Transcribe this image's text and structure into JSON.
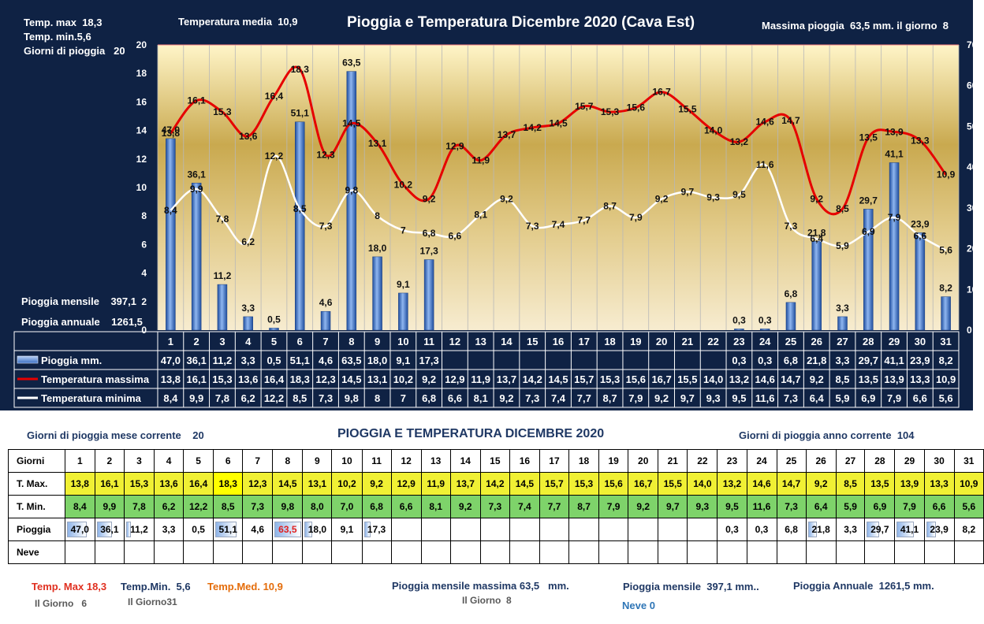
{
  "header": {
    "title": "Pioggia e Temperatura Dicembre 2020 (Cava Est)",
    "tmax_label": "Temp. max",
    "tmax_value": "18,3",
    "tmin_label": "Temp.  min.",
    "tmin_value": "5,6",
    "rain_days_label": "Giorni  di pioggia",
    "rain_days_value": "20",
    "tmed_label": "Temperatura media",
    "tmed_value": "10,9",
    "maxrain_label": "Massima pioggia",
    "maxrain_value": "63,5 mm. il giorno",
    "maxrain_day": "8",
    "monthly_label": "Pioggia mensile",
    "monthly_value": "397,1",
    "annual_label": "Pioggia annuale",
    "annual_value": "1261,5"
  },
  "chart_data": {
    "type": "bar",
    "categories": [
      "1",
      "2",
      "3",
      "4",
      "5",
      "6",
      "7",
      "8",
      "9",
      "10",
      "11",
      "12",
      "13",
      "14",
      "15",
      "16",
      "17",
      "18",
      "19",
      "20",
      "21",
      "22",
      "23",
      "24",
      "25",
      "26",
      "27",
      "28",
      "29",
      "30",
      "31"
    ],
    "y_left": {
      "min": 0,
      "max": 20,
      "ticks": [
        "0",
        "2",
        "4",
        "6",
        "8",
        "10",
        "12",
        "14",
        "16",
        "18",
        "20"
      ]
    },
    "y_right": {
      "min": 0,
      "max": 70,
      "ticks": [
        "0",
        "10",
        "20",
        "30",
        "40",
        "50",
        "60",
        "70"
      ]
    },
    "series": [
      {
        "name": "Pioggia mm.",
        "type": "bar",
        "axis": "right",
        "color": "#4a7fd6",
        "values": [
          47.0,
          36.1,
          11.2,
          3.3,
          0.5,
          51.1,
          4.6,
          63.5,
          18.0,
          9.1,
          17.3,
          null,
          null,
          null,
          null,
          null,
          null,
          null,
          null,
          null,
          null,
          null,
          0.3,
          0.3,
          6.8,
          21.8,
          3.3,
          29.7,
          41.1,
          23.9,
          8.2
        ],
        "labels": [
          "47,0",
          "36,1",
          "11,2",
          "3,3",
          "0,5",
          "51,1",
          "4,6",
          "63,5",
          "18,0",
          "9,1",
          "17,3",
          "",
          "",
          "",
          "",
          "",
          "",
          "",
          "",
          "",
          "",
          "",
          "0,3",
          "0,3",
          "6,8",
          "21,8",
          "3,3",
          "29,7",
          "41,1",
          "23,9",
          "8,2"
        ]
      },
      {
        "name": "Temperatura massima",
        "type": "line",
        "axis": "left",
        "color": "#e60000",
        "values": [
          13.8,
          16.1,
          15.3,
          13.6,
          16.4,
          18.3,
          12.3,
          14.5,
          13.1,
          10.2,
          9.2,
          12.9,
          11.9,
          13.7,
          14.2,
          14.5,
          15.7,
          15.3,
          15.6,
          16.7,
          15.5,
          14.0,
          13.2,
          14.6,
          14.7,
          9.2,
          8.5,
          13.5,
          13.9,
          13.3,
          10.9
        ],
        "labels": [
          "13,8",
          "16,1",
          "15,3",
          "13,6",
          "16,4",
          "18,3",
          "12,3",
          "14,5",
          "13,1",
          "10,2",
          "9,2",
          "12,9",
          "11,9",
          "13,7",
          "14,2",
          "14,5",
          "15,7",
          "15,3",
          "15,6",
          "16,7",
          "15,5",
          "14,0",
          "13,2",
          "14,6",
          "14,7",
          "9,2",
          "8,5",
          "13,5",
          "13,9",
          "13,3",
          "10,9"
        ]
      },
      {
        "name": "Temperatura minima",
        "type": "line",
        "axis": "left",
        "color": "#ffffff",
        "values": [
          8.4,
          9.9,
          7.8,
          6.2,
          12.2,
          8.5,
          7.3,
          9.8,
          8,
          7,
          6.8,
          6.6,
          8.1,
          9.2,
          7.3,
          7.4,
          7.7,
          8.7,
          7.9,
          9.2,
          9.7,
          9.3,
          9.5,
          11.6,
          7.3,
          6.4,
          5.9,
          6.9,
          7.9,
          6.6,
          5.6
        ],
        "labels": [
          "8,4",
          "9,9",
          "7,8",
          "6,2",
          "12,2",
          "8,5",
          "7,3",
          "9,8",
          "8",
          "7",
          "6,8",
          "6,6",
          "8,1",
          "9,2",
          "7,3",
          "7,4",
          "7,7",
          "8,7",
          "7,9",
          "9,2",
          "9,7",
          "9,3",
          "9,5",
          "11,6",
          "7,3",
          "6,4",
          "5,9",
          "6,9",
          "7,9",
          "6,6",
          "5,6"
        ]
      }
    ]
  },
  "lower": {
    "title": "PIOGGIA E TEMPERATURA DICEMBRE 2020",
    "rain_days_month_label": "Giorni di pioggia mese corrente",
    "rain_days_month_value": "20",
    "rain_days_year_label": "Giorni di pioggia anno corrente",
    "rain_days_year_value": "104",
    "row_labels": [
      "Giorni",
      "T. Max.",
      "T. Min.",
      "Pioggia",
      "Neve"
    ],
    "tmin_table": [
      "8,4",
      "9,9",
      "7,8",
      "6,2",
      "12,2",
      "8,5",
      "7,3",
      "9,8",
      "8,0",
      "7,0",
      "6,8",
      "6,6",
      "8,1",
      "9,2",
      "7,3",
      "7,4",
      "7,7",
      "8,7",
      "7,9",
      "9,2",
      "9,7",
      "9,3",
      "9,5",
      "11,6",
      "7,3",
      "6,4",
      "5,9",
      "6,9",
      "7,9",
      "6,6",
      "5,6"
    ],
    "rain_table": [
      "47,0",
      "36,1",
      "11,2",
      "3,3",
      "0,5",
      "51,1",
      "4,6",
      "63,5",
      "18,0",
      "9,1",
      "17,3",
      "",
      "",
      "",
      "",
      "",
      "",
      "",
      "",
      "",
      "",
      "",
      "0,3",
      "0,3",
      "6,8",
      "21,8",
      "3,3",
      "29,7",
      "41,1",
      "23,9",
      "8,2"
    ],
    "highlight_max_rain_day": 8,
    "highlight_tmax_day": 6
  },
  "footer": {
    "tmax_label": "Temp. Max",
    "tmax_value": "18,3",
    "tmax_day_label": "Il Giorno",
    "tmax_day": "6",
    "tmin_label": "Temp.Min.",
    "tmin_value": "5,6",
    "tmin_day_label": "Il Giorno",
    "tmin_day": "31",
    "tmed_label": "Temp.Med.",
    "tmed_value": "10,9",
    "monthly_max_label": "Pioggia mensile massima",
    "monthly_max_value": "63,5",
    "monthly_max_unit": "mm.",
    "monthly_max_day_label": "Il Giorno",
    "monthly_max_day": "8",
    "monthly_label": "Pioggia mensile",
    "monthly_value": "397,1 mm..",
    "annual_label": "Pioggia Annuale",
    "annual_value": "1261,5 mm.",
    "snow_label": "Neve",
    "snow_value": "0"
  }
}
